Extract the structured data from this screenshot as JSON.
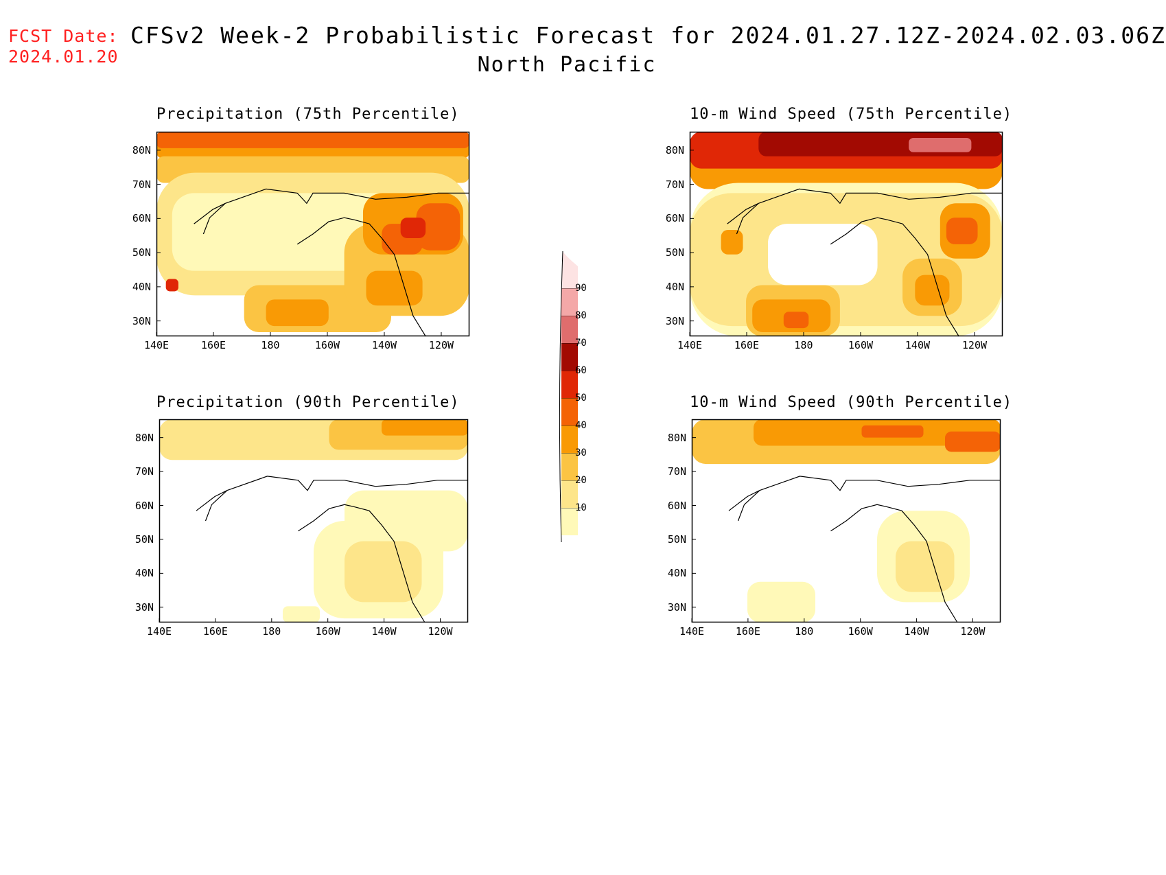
{
  "header": {
    "fcst_label": "FCST Date:",
    "fcst_date": "2024.01.20",
    "title": "CFSv2 Week-2 Probabilistic Forecast for 2024.01.27.12Z-2024.02.03.06Z",
    "subtitle": "North Pacific"
  },
  "panels": [
    {
      "title": "Precipitation (75th Percentile)"
    },
    {
      "title": "10-m Wind Speed (75th Percentile)"
    },
    {
      "title": "Precipitation (90th Percentile)"
    },
    {
      "title": "10-m Wind Speed (90th Percentile)"
    }
  ],
  "axes": {
    "lat_labels": [
      "80N",
      "70N",
      "60N",
      "50N",
      "40N",
      "30N"
    ],
    "lon_labels": [
      "140E",
      "160E",
      "180",
      "160W",
      "140W",
      "120W"
    ]
  },
  "colorbar": {
    "levels": [
      "10",
      "20",
      "30",
      "40",
      "50",
      "60",
      "70",
      "80",
      "90"
    ],
    "colors": [
      "#fff9b8",
      "#fde58a",
      "#fbc443",
      "#f99a05",
      "#f46306",
      "#e02706",
      "#a20a02",
      "#df6d6d",
      "#f4a8a8",
      "#fde3e3"
    ]
  }
}
